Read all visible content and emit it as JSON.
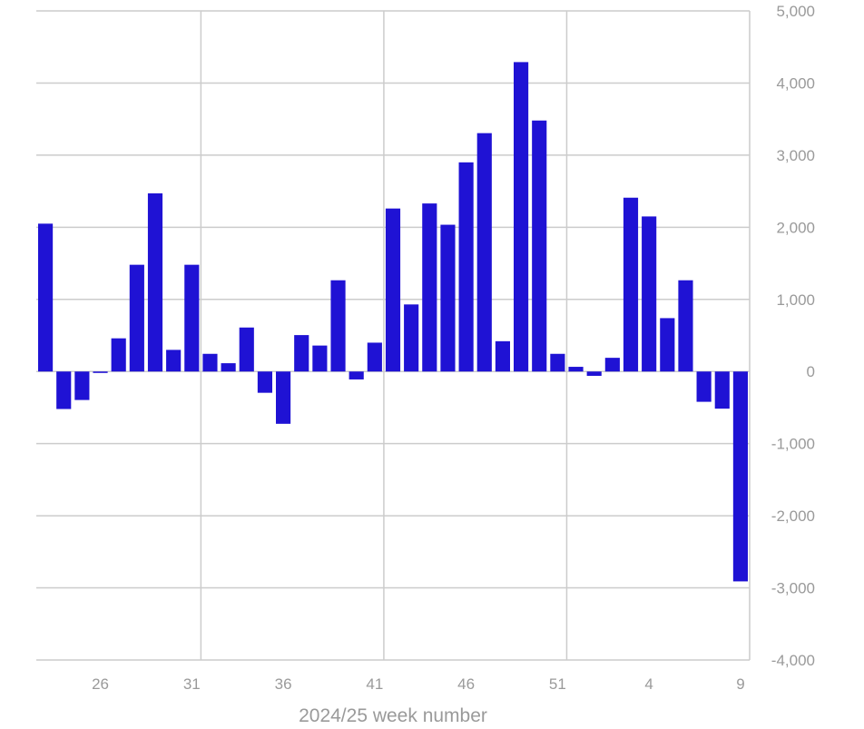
{
  "chart_data": {
    "type": "bar",
    "title": "",
    "xlabel": "2024/25 week number",
    "ylabel": "",
    "ylim": [
      -4000,
      5000
    ],
    "yticks": [
      5000,
      4000,
      3000,
      2000,
      1000,
      0,
      -1000,
      -2000,
      -3000,
      -4000
    ],
    "ytick_labels": [
      "5,000",
      "4,000",
      "3,000",
      "2,000",
      "1,000",
      "0",
      "-1,000",
      "-2,000",
      "-3,000",
      "-4,000"
    ],
    "y_axis_side": "right",
    "grid": true,
    "bar_color": "#1f12d4",
    "categories": [
      "23",
      "24",
      "25",
      "26",
      "27",
      "28",
      "29",
      "30",
      "31",
      "32",
      "33",
      "34",
      "35",
      "36",
      "37",
      "38",
      "39",
      "40",
      "41",
      "42",
      "43",
      "44",
      "45",
      "46",
      "47",
      "48",
      "49",
      "50",
      "51",
      "52",
      "1",
      "2",
      "3",
      "4",
      "5",
      "6",
      "7",
      "8",
      "9"
    ],
    "xtick_labels": [
      "26",
      "31",
      "36",
      "41",
      "46",
      "51",
      "4",
      "9"
    ],
    "values": [
      2050,
      -520,
      -395,
      -20,
      460,
      1480,
      2470,
      300,
      1480,
      245,
      115,
      610,
      -295,
      -725,
      505,
      360,
      1265,
      -110,
      400,
      2260,
      930,
      2330,
      2035,
      2900,
      3305,
      420,
      4290,
      3480,
      245,
      65,
      -60,
      190,
      2410,
      2150,
      740,
      1265,
      -420,
      -515,
      -2910
    ]
  }
}
